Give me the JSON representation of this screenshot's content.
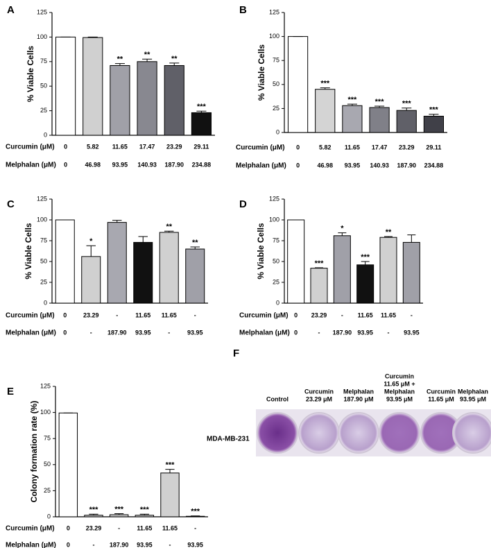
{
  "chart_data": [
    {
      "type": "bar",
      "label": "A",
      "ylabel": "% Viable Cells",
      "ylim": [
        0,
        125
      ],
      "yticks": [
        0,
        25,
        50,
        75,
        100,
        125
      ],
      "category_rows": [
        {
          "name": "Curcumin (μM)",
          "labels": [
            "0",
            "5.82",
            "11.65",
            "17.47",
            "23.29",
            "29.11"
          ]
        },
        {
          "name": "Melphalan (μM)",
          "labels": [
            "0",
            "46.98",
            "93.95",
            "140.93",
            "187.90",
            "234.88"
          ]
        }
      ],
      "values": [
        100,
        99.5,
        71,
        75,
        71,
        23
      ],
      "errors": [
        0,
        0.5,
        2,
        2.5,
        2.5,
        1.5
      ],
      "annotations": [
        null,
        null,
        "**",
        "**",
        "**",
        "***"
      ],
      "colors": [
        "#ffffff",
        "#d0d0d0",
        "#a0a0a8",
        "#888890",
        "#606068",
        "#111111"
      ]
    },
    {
      "type": "bar",
      "label": "B",
      "ylabel": "% Viable Cells",
      "ylim": [
        0,
        125
      ],
      "yticks": [
        0,
        25,
        50,
        75,
        100,
        125
      ],
      "category_rows": [
        {
          "name": "Curcumin (μM)",
          "labels": [
            "0",
            "5.82",
            "11.65",
            "17.47",
            "23.29",
            "29.11"
          ]
        },
        {
          "name": "Melphalan (μM)",
          "labels": [
            "0",
            "46.98",
            "93.95",
            "140.93",
            "187.90",
            "234.88"
          ]
        }
      ],
      "values": [
        100,
        45,
        28,
        26,
        23,
        17
      ],
      "errors": [
        0,
        1.5,
        1.5,
        1.5,
        2.5,
        2
      ],
      "annotations": [
        null,
        "***",
        "***",
        "***",
        "***",
        "***"
      ],
      "colors": [
        "#ffffff",
        "#d4d4d4",
        "#a8a8b0",
        "#808088",
        "#606068",
        "#404048"
      ]
    },
    {
      "type": "bar",
      "label": "C",
      "ylabel": "% Viable Cells",
      "ylim": [
        0,
        125
      ],
      "yticks": [
        0,
        25,
        50,
        75,
        100,
        125
      ],
      "category_rows": [
        {
          "name": "Curcumin (μM)",
          "labels": [
            "0",
            "23.29",
            "-",
            "11.65",
            "11.65",
            "-"
          ]
        },
        {
          "name": "Melphalan (μM)",
          "labels": [
            "0",
            "-",
            "187.90",
            "93.95",
            "-",
            "93.95"
          ]
        }
      ],
      "values": [
        100,
        56,
        97,
        73,
        85,
        65
      ],
      "errors": [
        0,
        13,
        2.5,
        7,
        1.5,
        2.5
      ],
      "annotations": [
        null,
        "*",
        null,
        null,
        "**",
        "**"
      ],
      "colors": [
        "#ffffff",
        "#d0d0d0",
        "#a8a8b0",
        "#111111",
        "#d0d0d0",
        "#a0a0a8"
      ]
    },
    {
      "type": "bar",
      "label": "D",
      "ylabel": "% Viable Cells",
      "ylim": [
        0,
        125
      ],
      "yticks": [
        0,
        25,
        50,
        75,
        100,
        125
      ],
      "category_rows": [
        {
          "name": "Curcumin (μM)",
          "labels": [
            "0",
            "23.29",
            "-",
            "11.65",
            "11.65",
            "-"
          ]
        },
        {
          "name": "Melphalan (μM)",
          "labels": [
            "0",
            "-",
            "187.90",
            "93.95",
            "-",
            "93.95"
          ]
        }
      ],
      "values": [
        100,
        42,
        81,
        46,
        79,
        73
      ],
      "errors": [
        0,
        0.5,
        3.5,
        4,
        1,
        9
      ],
      "annotations": [
        null,
        "***",
        "*",
        "***",
        "**",
        null
      ],
      "colors": [
        "#ffffff",
        "#d0d0d0",
        "#a0a0a8",
        "#111111",
        "#d0d0d0",
        "#a0a0a8"
      ]
    },
    {
      "type": "bar",
      "label": "E",
      "ylabel": "Colony formation rate (%)",
      "ylim": [
        0,
        125
      ],
      "yticks": [
        0,
        25,
        50,
        75,
        100,
        125
      ],
      "category_rows": [
        {
          "name": "Curcumin (μM)",
          "labels": [
            "0",
            "23.29",
            "-",
            "11.65",
            "11.65",
            "-"
          ]
        },
        {
          "name": "Melphalan (μM)",
          "labels": [
            "0",
            "-",
            "187.90",
            "93.95",
            "-",
            "93.95"
          ]
        }
      ],
      "values": [
        99.5,
        1.5,
        2,
        1.5,
        42,
        0.5
      ],
      "errors": [
        0,
        1,
        1,
        1,
        3.5,
        0.3
      ],
      "annotations": [
        null,
        "***",
        "***",
        "***",
        "***",
        "***"
      ],
      "colors": [
        "#ffffff",
        "#d0d0d0",
        "#d0d0d0",
        "#d0d0d0",
        "#d0d0d0",
        "#d0d0d0"
      ]
    }
  ],
  "panel_f": {
    "label": "F",
    "cell_line": "MDA-MB-231",
    "columns": [
      [
        "Control"
      ],
      [
        "Curcumin",
        "23.29 μM"
      ],
      [
        "Melphalan",
        "187.90 μM"
      ],
      [
        "Curcumin",
        "11.65 μM +",
        "Melphalan",
        "93.95 μM"
      ],
      [
        "Curcumin",
        "11.65 μM"
      ],
      [
        "Melphalan",
        "93.95 μM"
      ]
    ]
  }
}
